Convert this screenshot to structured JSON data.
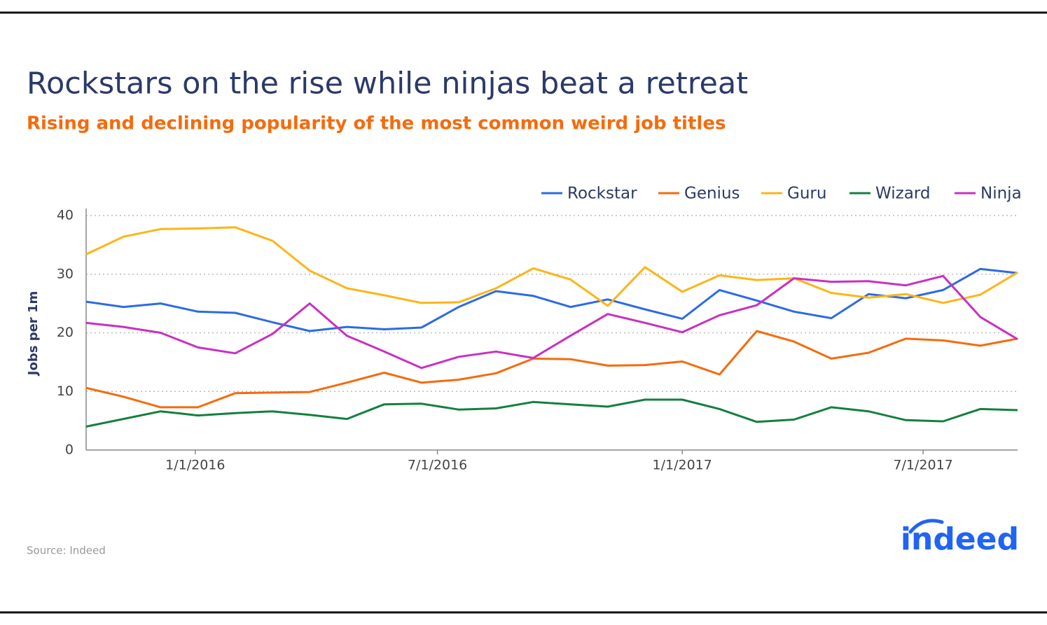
{
  "chart_data": {
    "type": "line",
    "title": "Rockstars on the rise while ninjas beat a retreat",
    "subtitle": "Rising and declining popularity of the most common weird job titles",
    "ylabel": "Jobs per 1m",
    "source": "Source: Indeed",
    "logo": "indeed",
    "x": [
      "2015-10-11",
      "2015-11-08",
      "2015-12-06",
      "2016-01-03",
      "2016-01-31",
      "2016-02-28",
      "2016-03-27",
      "2016-04-24",
      "2016-05-22",
      "2016-06-19",
      "2016-07-17",
      "2016-08-14",
      "2016-09-11",
      "2016-10-09",
      "2016-11-06",
      "2016-12-04",
      "2017-01-01",
      "2017-01-29",
      "2017-02-26",
      "2017-03-26",
      "2017-04-23",
      "2017-05-21",
      "2017-06-18",
      "2017-07-16",
      "2017-08-13",
      "2017-09-10"
    ],
    "series": [
      {
        "name": "Rockstar",
        "color": "#2b6be6",
        "values": [
          25.3,
          24.4,
          25,
          23.6,
          23.4,
          21.8,
          20.3,
          21,
          20.6,
          20.9,
          24.4,
          27.1,
          26.3,
          24.4,
          25.7,
          24,
          22.4,
          27.3,
          25.5,
          23.6,
          22.5,
          26.6,
          25.9,
          27.3,
          30.9,
          30.2
        ]
      },
      {
        "name": "Genius",
        "color": "#f56b0c",
        "values": [
          10.6,
          9.1,
          7.3,
          7.3,
          9.7,
          9.8,
          9.9,
          11.5,
          13.2,
          11.5,
          12,
          13.1,
          15.6,
          15.5,
          14.4,
          14.5,
          15.1,
          12.9,
          20.3,
          18.5,
          15.6,
          16.6,
          19,
          18.7,
          17.8,
          19
        ]
      },
      {
        "name": "Guru",
        "color": "#fdb515",
        "values": [
          33.4,
          36.4,
          37.7,
          37.8,
          38,
          35.7,
          30.6,
          27.6,
          26.4,
          25.1,
          25.2,
          27.6,
          31,
          29.1,
          24.6,
          31.2,
          27,
          29.8,
          29,
          29.3,
          26.8,
          26,
          26.6,
          25.1,
          26.5,
          30.3
        ]
      },
      {
        "name": "Wizard",
        "color": "#13803f",
        "values": [
          4,
          5.3,
          6.6,
          5.9,
          6.3,
          6.6,
          6,
          5.3,
          7.8,
          7.9,
          6.9,
          7.1,
          8.2,
          7.8,
          7.4,
          8.6,
          8.6,
          7,
          4.8,
          5.2,
          7.3,
          6.6,
          5.1,
          4.9,
          7,
          6.8
        ]
      },
      {
        "name": "Ninja",
        "color": "#c930c0",
        "values": [
          21.7,
          21,
          20,
          17.5,
          16.5,
          19.8,
          25,
          19.5,
          16.8,
          14,
          15.9,
          16.8,
          15.7,
          19.5,
          23.2,
          21.7,
          20.1,
          23,
          24.7,
          29.3,
          28.7,
          28.8,
          28.1,
          29.7,
          22.7,
          18.9
        ]
      }
    ],
    "xlim": [
      "2015-10-11",
      "2017-09-10"
    ],
    "xticks": [
      {
        "value": "2016-01-01",
        "label": "1/1/2016"
      },
      {
        "value": "2016-07-01",
        "label": "7/1/2016"
      },
      {
        "value": "2017-01-01",
        "label": "1/1/2017"
      },
      {
        "value": "2017-07-01",
        "label": "7/1/2017"
      }
    ],
    "ylim": [
      0,
      40
    ],
    "yticks": [
      0,
      10,
      20,
      30,
      40
    ],
    "grid": true,
    "legend": "top-right"
  }
}
